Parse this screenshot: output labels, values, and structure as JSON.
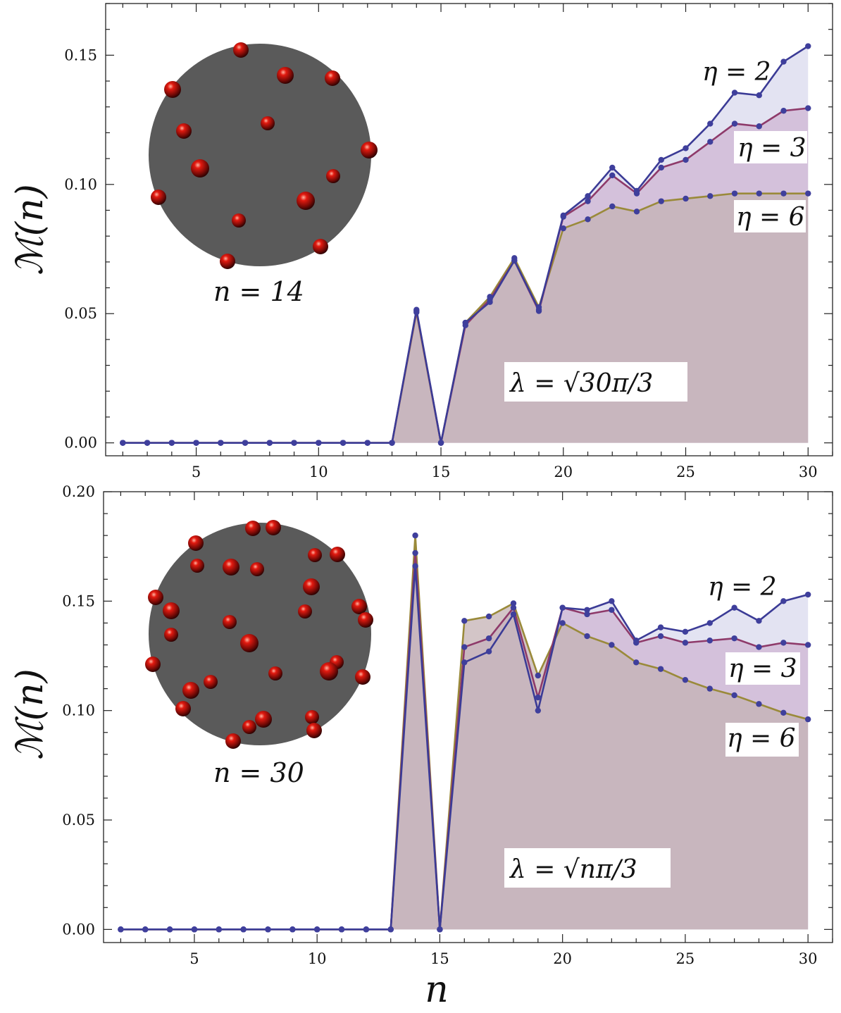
{
  "chart_data": [
    {
      "type": "area",
      "x": [
        2,
        3,
        4,
        5,
        6,
        7,
        8,
        9,
        10,
        11,
        12,
        13,
        14,
        15,
        16,
        17,
        18,
        19,
        20,
        21,
        22,
        23,
        24,
        25,
        26,
        27,
        28,
        29,
        30
      ],
      "series": [
        {
          "name": "η=2",
          "color": "#3b3b96",
          "fill": "#d9d9ee",
          "values": [
            0,
            0,
            0,
            0,
            0,
            0,
            0,
            0,
            0,
            0,
            0,
            0,
            0.0515,
            0,
            0.0465,
            0.0545,
            0.0705,
            0.0515,
            0.088,
            0.0955,
            0.1065,
            0.0975,
            0.1095,
            0.114,
            0.1235,
            0.1355,
            0.1345,
            0.1475,
            0.1535
          ]
        },
        {
          "name": "η=3",
          "color": "#8e3a6a",
          "fill": "#cfb6d3",
          "values": [
            0,
            0,
            0,
            0,
            0,
            0,
            0,
            0,
            0,
            0,
            0,
            0,
            0.051,
            0,
            0.0455,
            0.0555,
            0.0705,
            0.051,
            0.0875,
            0.0935,
            0.1035,
            0.0965,
            0.1065,
            0.1095,
            0.1165,
            0.1235,
            0.1225,
            0.1285,
            0.1295
          ]
        },
        {
          "name": "η=6",
          "color": "#9a8a3a",
          "fill": "#c4b1b4",
          "values": [
            0,
            0,
            0,
            0,
            0,
            0,
            0,
            0,
            0,
            0,
            0,
            0,
            0.0505,
            0,
            0.0465,
            0.0565,
            0.0715,
            0.0525,
            0.083,
            0.0865,
            0.0915,
            0.0895,
            0.0935,
            0.0945,
            0.0955,
            0.0965,
            0.0965,
            0.0965,
            0.0965
          ]
        }
      ],
      "xlim": [
        1.3,
        31
      ],
      "ylim": [
        -0.005,
        0.17
      ],
      "xticks": [
        5,
        10,
        15,
        20,
        25,
        30
      ],
      "xtick_labels": [
        "5",
        "10",
        "15",
        "20",
        "25",
        "30"
      ],
      "yticks": [
        0,
        0.05,
        0.1,
        0.15
      ],
      "ytick_labels": [
        "0.00",
        "0.05",
        "0.10",
        "0.15"
      ],
      "ylabel": "ℳ(n)",
      "xlabel": "",
      "annotations": {
        "eta2": "η = 2",
        "eta3": "η = 3",
        "eta6": "η = 6",
        "lambda": "λ = √30π/3",
        "inset": "n = 14"
      }
    },
    {
      "type": "area",
      "x": [
        2,
        3,
        4,
        5,
        6,
        7,
        8,
        9,
        10,
        11,
        12,
        13,
        14,
        15,
        16,
        17,
        18,
        19,
        20,
        21,
        22,
        23,
        24,
        25,
        26,
        27,
        28,
        29,
        30
      ],
      "series": [
        {
          "name": "η=2",
          "color": "#3b3b96",
          "fill": "#d9d9ee",
          "values": [
            0,
            0,
            0,
            0,
            0,
            0,
            0,
            0,
            0,
            0,
            0,
            0,
            0.166,
            0,
            0.122,
            0.127,
            0.144,
            0.1,
            0.147,
            0.146,
            0.15,
            0.132,
            0.138,
            0.136,
            0.14,
            0.147,
            0.141,
            0.15,
            0.153
          ]
        },
        {
          "name": "η=3",
          "color": "#8e3a6a",
          "fill": "#cfb6d3",
          "values": [
            0,
            0,
            0,
            0,
            0,
            0,
            0,
            0,
            0,
            0,
            0,
            0,
            0.172,
            0,
            0.129,
            0.133,
            0.147,
            0.106,
            0.147,
            0.144,
            0.146,
            0.131,
            0.134,
            0.131,
            0.132,
            0.133,
            0.129,
            0.131,
            0.13
          ]
        },
        {
          "name": "η=6",
          "color": "#9a8a3a",
          "fill": "#c4b1b4",
          "values": [
            0,
            0,
            0,
            0,
            0,
            0,
            0,
            0,
            0,
            0,
            0,
            0,
            0.18,
            0,
            0.141,
            0.143,
            0.149,
            0.116,
            0.14,
            0.134,
            0.13,
            0.122,
            0.119,
            0.114,
            0.11,
            0.107,
            0.103,
            0.099,
            0.096
          ]
        }
      ],
      "xlim": [
        1.3,
        31
      ],
      "ylim": [
        -0.006,
        0.2
      ],
      "xticks": [
        5,
        10,
        15,
        20,
        25,
        30
      ],
      "xtick_labels": [
        "5",
        "10",
        "15",
        "20",
        "25",
        "30"
      ],
      "yticks": [
        0,
        0.05,
        0.1,
        0.15,
        0.2
      ],
      "ytick_labels": [
        "0.00",
        "0.05",
        "0.10",
        "0.15",
        "0.20"
      ],
      "ylabel": "ℳ(n)",
      "xlabel": "n",
      "annotations": {
        "eta2": "η = 2",
        "eta3": "η = 3",
        "eta6": "η = 6",
        "lambda": "λ = √nπ/3",
        "inset": "n = 30"
      }
    }
  ]
}
